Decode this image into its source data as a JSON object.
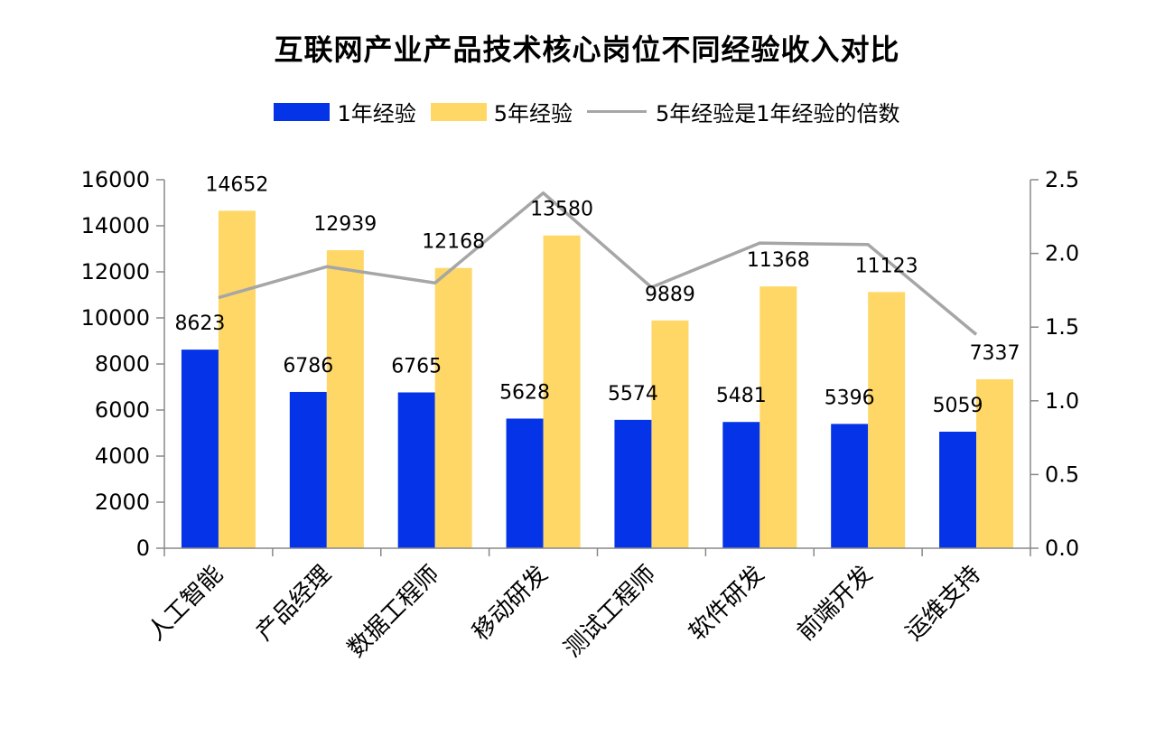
{
  "chart_data": {
    "type": "bar",
    "title": "互联网产业产品技术核心岗位不同经验收入对比",
    "categories": [
      "人工智能",
      "产品经理",
      "数据工程师",
      "移动研发",
      "测试工程师",
      "软件研发",
      "前端开发",
      "运维支持"
    ],
    "series": [
      {
        "name": "1年经验",
        "type": "bar",
        "axis": "left",
        "color": "#0433e8",
        "values": [
          8623,
          6786,
          6765,
          5628,
          5574,
          5481,
          5396,
          5059
        ]
      },
      {
        "name": "5年经验",
        "type": "bar",
        "axis": "left",
        "color": "#fed766",
        "values": [
          14652,
          12939,
          12168,
          13580,
          9889,
          11368,
          11123,
          7337
        ]
      },
      {
        "name": "5年经验是1年经验的倍数",
        "type": "line",
        "axis": "right",
        "color": "#a6a6a6",
        "values": [
          1.7,
          1.91,
          1.8,
          2.41,
          1.77,
          2.07,
          2.06,
          1.45
        ]
      }
    ],
    "ylim": [
      0,
      16000
    ],
    "y_ticks": [
      "0",
      "2000",
      "4000",
      "6000",
      "8000",
      "10000",
      "12000",
      "14000",
      "16000"
    ],
    "y2lim": [
      0,
      2.5
    ],
    "y2_ticks": [
      "0.0",
      "0.5",
      "1.0",
      "1.5",
      "2.0",
      "2.5"
    ],
    "grid": false,
    "legend_position": "top"
  }
}
